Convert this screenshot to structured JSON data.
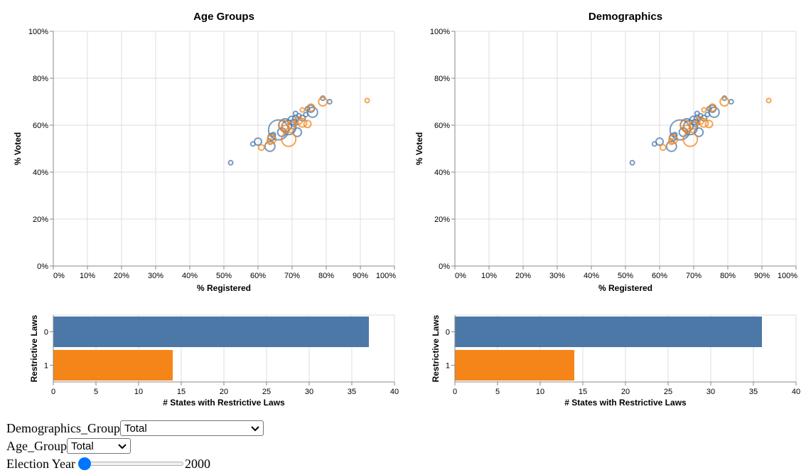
{
  "chart_data": [
    {
      "type": "scatter",
      "title": "Age Groups",
      "xlabel": "% Registered",
      "ylabel": "% Voted",
      "xlim": [
        0,
        1
      ],
      "ylim": [
        0,
        1
      ],
      "xticks": [
        "0%",
        "10%",
        "20%",
        "30%",
        "40%",
        "50%",
        "60%",
        "70%",
        "80%",
        "90%",
        "100%"
      ],
      "yticks": [
        "0%",
        "20%",
        "40%",
        "60%",
        "80%",
        "100%"
      ],
      "grid": true,
      "series": [
        {
          "color": "#4c78a8",
          "points": [
            {
              "x": 0.52,
              "y": 0.44,
              "size": 3
            },
            {
              "x": 0.585,
              "y": 0.52,
              "size": 3
            },
            {
              "x": 0.6,
              "y": 0.53,
              "size": 5
            },
            {
              "x": 0.635,
              "y": 0.51,
              "size": 7
            },
            {
              "x": 0.64,
              "y": 0.55,
              "size": 5
            },
            {
              "x": 0.645,
              "y": 0.56,
              "size": 3
            },
            {
              "x": 0.66,
              "y": 0.58,
              "size": 14
            },
            {
              "x": 0.67,
              "y": 0.57,
              "size": 6
            },
            {
              "x": 0.68,
              "y": 0.6,
              "size": 9
            },
            {
              "x": 0.69,
              "y": 0.59,
              "size": 10
            },
            {
              "x": 0.7,
              "y": 0.62,
              "size": 6
            },
            {
              "x": 0.705,
              "y": 0.61,
              "size": 5
            },
            {
              "x": 0.71,
              "y": 0.63,
              "size": 4
            },
            {
              "x": 0.71,
              "y": 0.65,
              "size": 3
            },
            {
              "x": 0.715,
              "y": 0.57,
              "size": 6
            },
            {
              "x": 0.72,
              "y": 0.64,
              "size": 3
            },
            {
              "x": 0.73,
              "y": 0.63,
              "size": 4
            },
            {
              "x": 0.74,
              "y": 0.645,
              "size": 3
            },
            {
              "x": 0.745,
              "y": 0.67,
              "size": 3
            },
            {
              "x": 0.755,
              "y": 0.67,
              "size": 5
            },
            {
              "x": 0.76,
              "y": 0.655,
              "size": 7
            },
            {
              "x": 0.79,
              "y": 0.715,
              "size": 3
            },
            {
              "x": 0.81,
              "y": 0.7,
              "size": 3
            }
          ]
        },
        {
          "color": "#f58518",
          "points": [
            {
              "x": 0.61,
              "y": 0.505,
              "size": 4
            },
            {
              "x": 0.635,
              "y": 0.53,
              "size": 4
            },
            {
              "x": 0.64,
              "y": 0.54,
              "size": 6
            },
            {
              "x": 0.675,
              "y": 0.6,
              "size": 7
            },
            {
              "x": 0.68,
              "y": 0.585,
              "size": 5
            },
            {
              "x": 0.69,
              "y": 0.54,
              "size": 10
            },
            {
              "x": 0.7,
              "y": 0.6,
              "size": 5
            },
            {
              "x": 0.72,
              "y": 0.62,
              "size": 5
            },
            {
              "x": 0.73,
              "y": 0.61,
              "size": 6
            },
            {
              "x": 0.73,
              "y": 0.665,
              "size": 3
            },
            {
              "x": 0.745,
              "y": 0.605,
              "size": 5
            },
            {
              "x": 0.755,
              "y": 0.675,
              "size": 5
            },
            {
              "x": 0.79,
              "y": 0.7,
              "size": 6
            },
            {
              "x": 0.92,
              "y": 0.705,
              "size": 3
            }
          ]
        }
      ]
    },
    {
      "type": "scatter",
      "title": "Demographics",
      "xlabel": "% Registered",
      "ylabel": "% Voted",
      "xlim": [
        0,
        1
      ],
      "ylim": [
        0,
        1
      ],
      "xticks": [
        "0%",
        "10%",
        "20%",
        "30%",
        "40%",
        "50%",
        "60%",
        "70%",
        "80%",
        "90%",
        "100%"
      ],
      "yticks": [
        "0%",
        "20%",
        "40%",
        "60%",
        "80%",
        "100%"
      ],
      "grid": true,
      "series": [
        {
          "color": "#4c78a8",
          "points": [
            {
              "x": 0.52,
              "y": 0.44,
              "size": 3
            },
            {
              "x": 0.585,
              "y": 0.52,
              "size": 3
            },
            {
              "x": 0.6,
              "y": 0.53,
              "size": 5
            },
            {
              "x": 0.635,
              "y": 0.51,
              "size": 7
            },
            {
              "x": 0.64,
              "y": 0.55,
              "size": 5
            },
            {
              "x": 0.645,
              "y": 0.56,
              "size": 3
            },
            {
              "x": 0.66,
              "y": 0.58,
              "size": 14
            },
            {
              "x": 0.67,
              "y": 0.57,
              "size": 6
            },
            {
              "x": 0.68,
              "y": 0.6,
              "size": 9
            },
            {
              "x": 0.69,
              "y": 0.59,
              "size": 10
            },
            {
              "x": 0.7,
              "y": 0.62,
              "size": 6
            },
            {
              "x": 0.705,
              "y": 0.61,
              "size": 5
            },
            {
              "x": 0.71,
              "y": 0.63,
              "size": 4
            },
            {
              "x": 0.71,
              "y": 0.65,
              "size": 3
            },
            {
              "x": 0.715,
              "y": 0.57,
              "size": 6
            },
            {
              "x": 0.72,
              "y": 0.64,
              "size": 3
            },
            {
              "x": 0.73,
              "y": 0.63,
              "size": 4
            },
            {
              "x": 0.74,
              "y": 0.645,
              "size": 3
            },
            {
              "x": 0.745,
              "y": 0.67,
              "size": 3
            },
            {
              "x": 0.755,
              "y": 0.67,
              "size": 5
            },
            {
              "x": 0.76,
              "y": 0.655,
              "size": 7
            },
            {
              "x": 0.79,
              "y": 0.715,
              "size": 3
            },
            {
              "x": 0.81,
              "y": 0.7,
              "size": 3
            }
          ]
        },
        {
          "color": "#f58518",
          "points": [
            {
              "x": 0.61,
              "y": 0.505,
              "size": 4
            },
            {
              "x": 0.635,
              "y": 0.53,
              "size": 4
            },
            {
              "x": 0.64,
              "y": 0.54,
              "size": 6
            },
            {
              "x": 0.675,
              "y": 0.6,
              "size": 7
            },
            {
              "x": 0.68,
              "y": 0.585,
              "size": 5
            },
            {
              "x": 0.69,
              "y": 0.54,
              "size": 10
            },
            {
              "x": 0.7,
              "y": 0.6,
              "size": 5
            },
            {
              "x": 0.72,
              "y": 0.62,
              "size": 5
            },
            {
              "x": 0.73,
              "y": 0.61,
              "size": 6
            },
            {
              "x": 0.73,
              "y": 0.665,
              "size": 3
            },
            {
              "x": 0.745,
              "y": 0.605,
              "size": 5
            },
            {
              "x": 0.755,
              "y": 0.675,
              "size": 5
            },
            {
              "x": 0.79,
              "y": 0.7,
              "size": 6
            },
            {
              "x": 0.92,
              "y": 0.705,
              "size": 3
            }
          ]
        }
      ]
    },
    {
      "type": "bar",
      "orientation": "horizontal",
      "categories": [
        "0",
        "1"
      ],
      "values": [
        37,
        14
      ],
      "colors": [
        "#4c78a8",
        "#f58518"
      ],
      "xlabel": "# States with Restrictive Laws",
      "ylabel": "Restrictive Laws",
      "xlim": [
        0,
        40
      ],
      "xticks": [
        "0",
        "5",
        "10",
        "15",
        "20",
        "25",
        "30",
        "35",
        "40"
      ],
      "grid": true
    },
    {
      "type": "bar",
      "orientation": "horizontal",
      "categories": [
        "0",
        "1"
      ],
      "values": [
        36,
        14
      ],
      "colors": [
        "#4c78a8",
        "#f58518"
      ],
      "xlabel": "# States with Restrictive Laws",
      "ylabel": "Restrictive Laws",
      "xlim": [
        0,
        40
      ],
      "xticks": [
        "0",
        "5",
        "10",
        "15",
        "20",
        "25",
        "30",
        "35",
        "40"
      ],
      "grid": true
    }
  ],
  "controls": {
    "demographics_label": "Demographics_Group",
    "demographics_value": "Total",
    "age_label": "Age_Group",
    "age_value": "Total",
    "year_label": "Election Year",
    "year_value": "2000",
    "year_slider_fraction": 0
  }
}
